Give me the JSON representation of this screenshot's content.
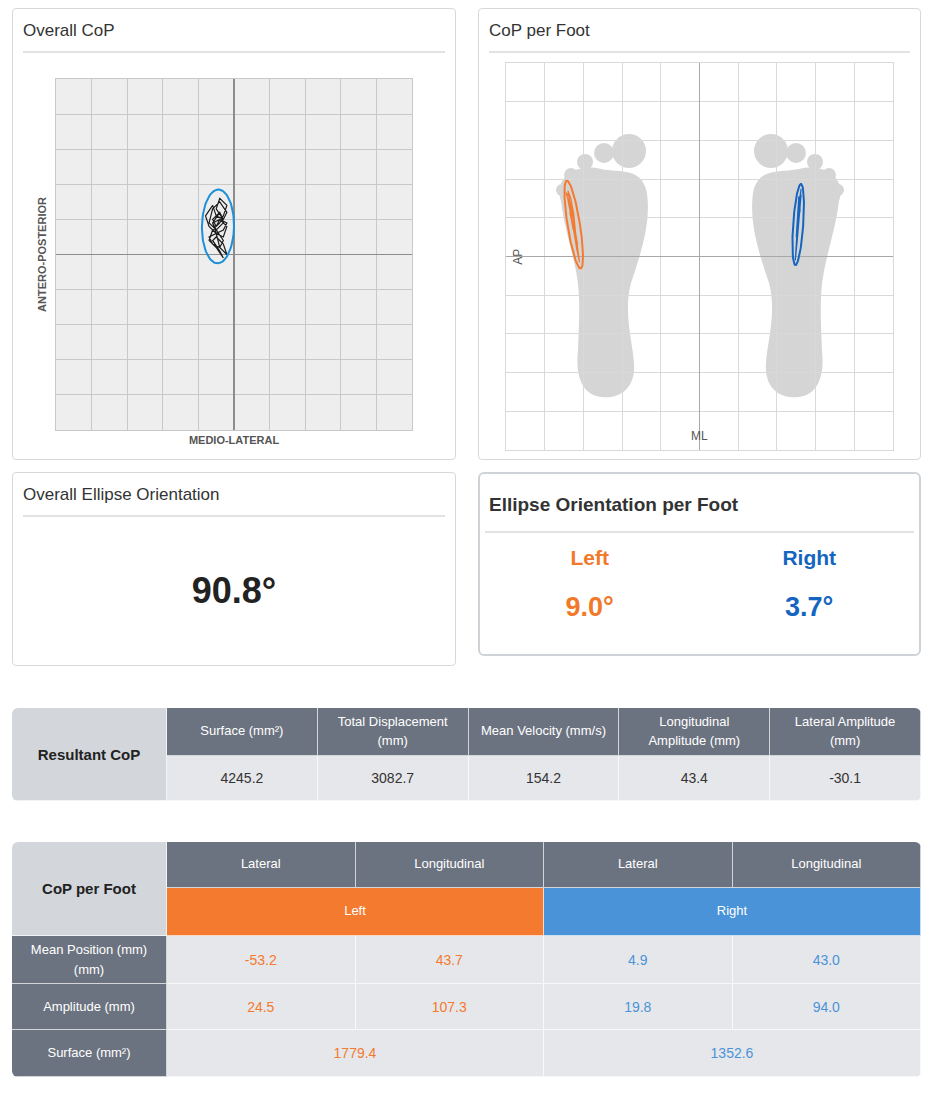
{
  "chart_data": [
    {
      "type": "scatter",
      "title": "Overall CoP",
      "xlabel": "MEDIO-LATERAL",
      "ylabel": "ANTERO-POSTERIOR",
      "xlim": [
        -50,
        50
      ],
      "ylim": [
        -50,
        50
      ],
      "xticks": [
        -50,
        -40,
        -30,
        -20,
        -10,
        0,
        10,
        20,
        30,
        40,
        50
      ],
      "yticks": [
        -50,
        -40,
        -30,
        -20,
        -10,
        0,
        10,
        20,
        30,
        40,
        50
      ],
      "grid": true,
      "tick_labels": false,
      "series": [
        {
          "type": "line",
          "color": "#1c1c1c",
          "line_style": "solid",
          "x": [
            -5,
            -6,
            -4,
            -3,
            -5,
            -7,
            -6,
            -4,
            -2,
            -3,
            -5,
            -6,
            -8,
            -7,
            -5,
            -3,
            -2,
            -4,
            -6,
            -5,
            -3,
            -4,
            -6,
            -7,
            -5,
            -4,
            -2,
            -3,
            -5,
            -6,
            -4,
            -3,
            -5,
            -7,
            -6,
            -4,
            -3,
            -2,
            -4,
            -5,
            -3,
            -4,
            -6,
            -5,
            -3,
            -2,
            -4,
            -5
          ],
          "y": [
            8,
            10,
            12,
            9,
            7,
            9,
            13,
            15,
            12,
            10,
            11,
            14,
            11,
            8,
            6,
            5,
            8,
            10,
            9,
            7,
            4,
            2,
            3,
            5,
            6,
            2,
            0,
            3,
            5,
            4,
            1,
            -1,
            2,
            4,
            7,
            9,
            11,
            14,
            16,
            13,
            10,
            12,
            9,
            6,
            7,
            9,
            10,
            8
          ]
        },
        {
          "type": "ellipse",
          "color": "#1e8fd8",
          "line_style": "solid",
          "center": [
            -4.5,
            8
          ],
          "semi_axes": [
            4.5,
            10.5
          ],
          "tilt": 0.8
        }
      ]
    },
    {
      "type": "scatter",
      "title": "CoP per Foot",
      "xlabel": "ML",
      "ylabel": "AP",
      "xlim": [
        -100,
        100
      ],
      "ylim": [
        -100,
        100
      ],
      "xticks": [
        -100,
        -80,
        -60,
        -40,
        -20,
        0,
        20,
        40,
        60,
        80,
        100
      ],
      "yticks": [
        -100,
        -80,
        -60,
        -40,
        -20,
        0,
        20,
        40,
        60,
        80,
        100
      ],
      "grid": true,
      "tick_labels": false,
      "series": [
        {
          "type": "line",
          "color": "#f27b2f",
          "line_style": "solid",
          "x": [
            -66,
            -67,
            -68,
            -66.5,
            -65,
            -64,
            -62.5,
            -62,
            -63.5,
            -65.5,
            -67,
            -69,
            -67.5,
            -66,
            -64.5,
            -63,
            -64,
            -66,
            -68,
            -66,
            -65,
            -63.5,
            -62.5,
            -64,
            -65.5,
            -67,
            -66.5
          ],
          "y": [
            20,
            28,
            34,
            30,
            22,
            12,
            2,
            -3,
            4,
            16,
            26,
            33,
            31,
            24,
            14,
            6,
            10,
            19,
            29,
            25,
            18,
            8,
            0,
            9,
            15,
            23,
            21
          ]
        },
        {
          "type": "ellipse",
          "color": "#f27b2f",
          "line_style": "solid",
          "center": [
            -65,
            16.5
          ],
          "semi_axes": [
            3.2,
            23
          ],
          "tilt": -9
        },
        {
          "type": "line",
          "color": "#1565c0",
          "line_style": "solid",
          "x": [
            51,
            52,
            52.5,
            51.5,
            50.5,
            50,
            49.5,
            50.5,
            51.5,
            52.5,
            51,
            50,
            51,
            52,
            51.3,
            50.2,
            49.8,
            50.8,
            51.6,
            51
          ],
          "y": [
            20,
            30,
            35,
            28,
            14,
            4,
            -2,
            8,
            22,
            32,
            26,
            10,
            18,
            24,
            31,
            12,
            2,
            15,
            25,
            19
          ]
        },
        {
          "type": "ellipse",
          "color": "#1565c0",
          "line_style": "solid",
          "center": [
            51,
            16.5
          ],
          "semi_axes": [
            2.6,
            21
          ],
          "tilt": 4
        }
      ]
    }
  ],
  "ellipse_orientation": {
    "overall": {
      "title": "Overall Ellipse Orientation",
      "value": "90.8°"
    },
    "per_foot": {
      "title": "Ellipse Orientation per Foot",
      "feet": [
        {
          "label": "Left",
          "value": "9.0°",
          "color": "#f07a2a"
        },
        {
          "label": "Right",
          "value": "3.7°",
          "color": "#1565c0"
        }
      ]
    }
  },
  "tables": {
    "resultant": {
      "title": "Resultant CoP",
      "columns": [
        "Surface (mm²)",
        "Total Displacement (mm)",
        "Mean Velocity (mm/s)",
        "Longitudinal Amplitude (mm)",
        "Lateral Amplitude (mm)"
      ],
      "values": [
        "4245.2",
        "3082.7",
        "154.2",
        "43.4",
        "-30.1"
      ]
    },
    "per_foot": {
      "title": "CoP per Foot",
      "sides": [
        {
          "label": "Left",
          "color": "#f47a2f",
          "columns": [
            "Lateral",
            "Longitudinal"
          ]
        },
        {
          "label": "Right",
          "color": "#4a93d8",
          "columns": [
            "Lateral",
            "Longitudinal"
          ]
        }
      ],
      "rows": [
        {
          "label": "Mean Position (mm) (mm)",
          "values": [
            "-53.2",
            "43.7",
            "4.9",
            "43.0"
          ]
        },
        {
          "label": "Amplitude (mm)",
          "values": [
            "24.5",
            "107.3",
            "19.8",
            "94.0"
          ]
        },
        {
          "label": "Surface (mm²)",
          "values": [
            "1779.4",
            "1352.6"
          ]
        }
      ]
    }
  }
}
